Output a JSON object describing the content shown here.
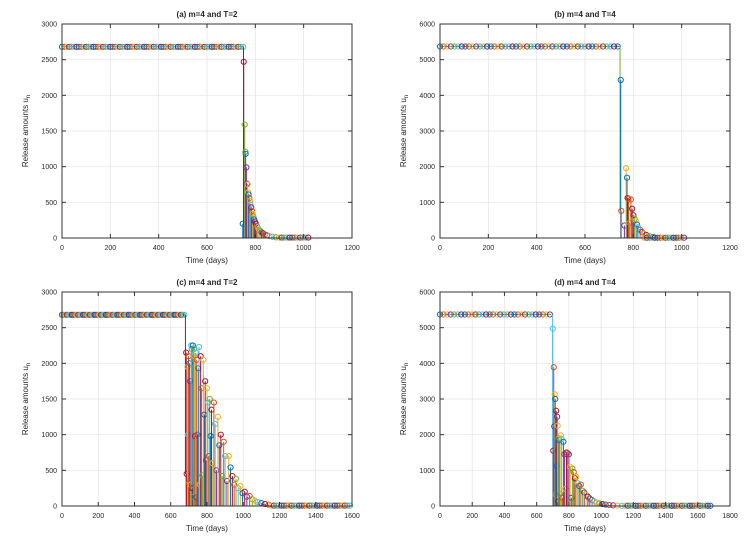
{
  "figure": {
    "background": "#ffffff",
    "palette": [
      "#0072BD",
      "#D95319",
      "#EDB120",
      "#7E2F8E",
      "#77AC30",
      "#4DBEEE",
      "#A2142F"
    ],
    "axis_color": "#333333",
    "grid_color": "#e3e3e3",
    "tick_label_color": "#262626"
  },
  "chart_data": [
    {
      "type": "scatter",
      "panel": "a",
      "title": "(a) m=4 and T=2",
      "xlabel": "Time (days)",
      "ylabel": "Release amounts u",
      "ylabel_sub": "n",
      "xlim": [
        0,
        1200
      ],
      "xticks": [
        0,
        200,
        400,
        600,
        800,
        1000,
        1200
      ],
      "ylim": [
        0,
        3000
      ],
      "yticks": [
        0,
        500,
        1000,
        1500,
        2000,
        2500,
        3000
      ],
      "grid": true,
      "legend": "none",
      "plateau": {
        "value": 2680,
        "from": 0,
        "to": 750,
        "step": 10
      },
      "drop": {
        "x": 751,
        "to_y": 180,
        "color_index": 6
      },
      "spikes": [
        [
          748,
          200,
          0
        ],
        [
          752,
          2470,
          6
        ],
        [
          756,
          1590,
          4
        ],
        [
          759,
          1210,
          4
        ],
        [
          760,
          1180,
          0
        ],
        [
          763,
          990,
          3
        ],
        [
          766,
          760,
          3
        ],
        [
          768,
          750,
          2
        ],
        [
          770,
          640,
          2
        ],
        [
          772,
          610,
          0
        ],
        [
          775,
          560,
          1
        ],
        [
          778,
          520,
          2
        ],
        [
          780,
          470,
          5
        ],
        [
          783,
          430,
          6
        ],
        [
          786,
          380,
          1
        ],
        [
          789,
          340,
          2
        ],
        [
          792,
          300,
          4
        ],
        [
          795,
          260,
          0
        ],
        [
          798,
          230,
          3
        ],
        [
          802,
          200,
          6
        ],
        [
          806,
          170,
          1
        ],
        [
          810,
          150,
          5
        ],
        [
          815,
          120,
          2
        ],
        [
          820,
          100,
          4
        ],
        [
          826,
          80,
          0
        ],
        [
          832,
          65,
          6
        ],
        [
          840,
          50,
          1
        ],
        [
          848,
          38,
          3
        ],
        [
          858,
          28,
          2
        ],
        [
          870,
          18,
          5
        ],
        [
          885,
          10,
          4
        ]
      ],
      "tail": {
        "from": 898,
        "to": 1020,
        "step": 11,
        "value": 6
      }
    },
    {
      "type": "scatter",
      "panel": "b",
      "title": "(b) m=4 and T=4",
      "xlabel": "Time (days)",
      "ylabel": "Release amounts u",
      "ylabel_sub": "n",
      "xlim": [
        0,
        1200
      ],
      "xticks": [
        0,
        200,
        400,
        600,
        800,
        1000,
        1200
      ],
      "ylim": [
        0,
        6000
      ],
      "yticks": [
        0,
        1000,
        2000,
        3000,
        4000,
        5000,
        6000
      ],
      "grid": true,
      "legend": "none",
      "plateau": {
        "value": 5370,
        "from": 0,
        "to": 742,
        "step": 15
      },
      "drop": {
        "x": 745,
        "to_y": 760,
        "color_index": 4
      },
      "spikes": [
        [
          748,
          4430,
          0
        ],
        [
          750,
          760,
          1
        ],
        [
          763,
          350,
          3
        ],
        [
          770,
          1960,
          2
        ],
        [
          774,
          1690,
          0
        ],
        [
          776,
          1120,
          6
        ],
        [
          780,
          1100,
          1
        ],
        [
          784,
          430,
          4
        ],
        [
          790,
          1080,
          1
        ],
        [
          795,
          820,
          6
        ],
        [
          800,
          640,
          6
        ],
        [
          805,
          540,
          4
        ],
        [
          810,
          490,
          2
        ],
        [
          815,
          380,
          0
        ],
        [
          820,
          300,
          5
        ],
        [
          828,
          230,
          1
        ],
        [
          836,
          170,
          3
        ],
        [
          845,
          120,
          2
        ],
        [
          855,
          80,
          6
        ],
        [
          868,
          50,
          4
        ],
        [
          882,
          30,
          0
        ]
      ],
      "tail": {
        "from": 845,
        "to": 1020,
        "step": 11,
        "value": 8
      }
    },
    {
      "type": "scatter",
      "panel": "c",
      "title": "(c) m=4 and T=2",
      "xlabel": "Time (days)",
      "ylabel": "Release amounts u",
      "ylabel_sub": "n",
      "xlim": [
        0,
        1600
      ],
      "xticks": [
        0,
        200,
        400,
        600,
        800,
        1000,
        1200,
        1400,
        1600
      ],
      "ylim": [
        0,
        3000
      ],
      "yticks": [
        0,
        500,
        1000,
        1500,
        2000,
        2500,
        3000
      ],
      "grid": true,
      "legend": "none",
      "plateau": {
        "value": 2680,
        "from": 0,
        "to": 680,
        "step": 9
      },
      "drop": {
        "x": 681,
        "to_y": 450,
        "color_index": 6
      },
      "spikes": [
        [
          685,
          2150,
          6
        ],
        [
          688,
          450,
          6
        ],
        [
          692,
          1950,
          2
        ],
        [
          695,
          1000,
          5
        ],
        [
          698,
          2100,
          1
        ],
        [
          701,
          320,
          1
        ],
        [
          704,
          2000,
          0
        ],
        [
          707,
          1750,
          3
        ],
        [
          710,
          300,
          2
        ],
        [
          713,
          2250,
          5
        ],
        [
          716,
          2200,
          4
        ],
        [
          719,
          250,
          6
        ],
        [
          722,
          2250,
          0
        ],
        [
          725,
          130,
          4
        ],
        [
          728,
          2200,
          4
        ],
        [
          731,
          2100,
          2
        ],
        [
          734,
          980,
          6
        ],
        [
          737,
          2150,
          5
        ],
        [
          740,
          120,
          0
        ],
        [
          743,
          2050,
          1
        ],
        [
          748,
          1000,
          3
        ],
        [
          752,
          1930,
          0
        ],
        [
          756,
          2230,
          5
        ],
        [
          760,
          300,
          2
        ],
        [
          765,
          2100,
          6
        ],
        [
          770,
          1650,
          1
        ],
        [
          775,
          430,
          4
        ],
        [
          780,
          2050,
          2
        ],
        [
          785,
          1280,
          0
        ],
        [
          790,
          1750,
          6
        ],
        [
          795,
          640,
          3
        ],
        [
          800,
          1650,
          2
        ],
        [
          805,
          1450,
          5
        ],
        [
          810,
          700,
          1
        ],
        [
          815,
          1500,
          4
        ],
        [
          820,
          980,
          0
        ],
        [
          825,
          1350,
          6
        ],
        [
          830,
          600,
          2
        ],
        [
          838,
          1450,
          1
        ],
        [
          845,
          1150,
          5
        ],
        [
          852,
          500,
          3
        ],
        [
          860,
          1250,
          2
        ],
        [
          868,
          850,
          0
        ],
        [
          876,
          1000,
          6
        ],
        [
          884,
          420,
          4
        ],
        [
          892,
          900,
          1
        ],
        [
          900,
          700,
          5
        ],
        [
          910,
          350,
          3
        ],
        [
          920,
          700,
          2
        ],
        [
          930,
          540,
          0
        ],
        [
          940,
          420,
          6
        ],
        [
          950,
          300,
          1
        ],
        [
          960,
          380,
          4
        ],
        [
          972,
          250,
          5
        ],
        [
          984,
          280,
          2
        ],
        [
          996,
          180,
          0
        ],
        [
          1008,
          200,
          6
        ],
        [
          1020,
          130,
          3
        ],
        [
          1035,
          140,
          1
        ],
        [
          1050,
          95,
          4
        ],
        [
          1065,
          75,
          2
        ],
        [
          1080,
          55,
          5
        ],
        [
          1100,
          40,
          0
        ],
        [
          1120,
          28,
          6
        ],
        [
          1140,
          18,
          1
        ]
      ],
      "tail": {
        "from": 1155,
        "to": 1600,
        "step": 14,
        "value": 5
      }
    },
    {
      "type": "scatter",
      "panel": "d",
      "title": "(d) m=4 and T=4",
      "xlabel": "Time (days)",
      "ylabel": "Release amounts u",
      "ylabel_sub": "n",
      "xlim": [
        0,
        1800
      ],
      "xticks": [
        0,
        200,
        400,
        600,
        800,
        1000,
        1200,
        1400,
        1600,
        1800
      ],
      "ylim": [
        0,
        6000
      ],
      "yticks": [
        0,
        1000,
        2000,
        3000,
        4000,
        5000,
        6000
      ],
      "grid": true,
      "legend": "none",
      "plateau": {
        "value": 5370,
        "from": 0,
        "to": 690,
        "step": 22
      },
      "drop": {
        "x": 699,
        "to_y": 1550,
        "color_index": 5
      },
      "spikes": [
        [
          700,
          4970,
          5
        ],
        [
          703,
          1550,
          6
        ],
        [
          706,
          3890,
          1
        ],
        [
          709,
          2230,
          3
        ],
        [
          712,
          3130,
          2
        ],
        [
          715,
          3000,
          0
        ],
        [
          718,
          320,
          4
        ],
        [
          721,
          2670,
          6
        ],
        [
          724,
          1120,
          0
        ],
        [
          727,
          2500,
          3
        ],
        [
          730,
          2250,
          2
        ],
        [
          733,
          120,
          6
        ],
        [
          736,
          1900,
          4
        ],
        [
          740,
          1850,
          0
        ],
        [
          745,
          330,
          4
        ],
        [
          750,
          1980,
          2
        ],
        [
          755,
          1880,
          5
        ],
        [
          760,
          230,
          1
        ],
        [
          766,
          1800,
          0
        ],
        [
          772,
          1450,
          3
        ],
        [
          778,
          480,
          2
        ],
        [
          785,
          1500,
          6
        ],
        [
          792,
          1480,
          1
        ],
        [
          800,
          1450,
          3
        ],
        [
          808,
          1100,
          2
        ],
        [
          815,
          230,
          0
        ],
        [
          822,
          1050,
          4
        ],
        [
          830,
          950,
          1
        ],
        [
          838,
          780,
          6
        ],
        [
          846,
          820,
          2
        ],
        [
          855,
          640,
          5
        ],
        [
          864,
          560,
          0
        ],
        [
          874,
          600,
          1
        ],
        [
          884,
          430,
          4
        ],
        [
          895,
          380,
          3
        ],
        [
          906,
          320,
          2
        ],
        [
          918,
          260,
          6
        ],
        [
          930,
          210,
          0
        ],
        [
          944,
          170,
          1
        ],
        [
          958,
          130,
          5
        ],
        [
          974,
          100,
          2
        ],
        [
          990,
          75,
          4
        ],
        [
          1008,
          55,
          6
        ],
        [
          1028,
          40,
          0
        ],
        [
          1050,
          28,
          1
        ],
        [
          1075,
          18,
          3
        ],
        [
          1100,
          12,
          2
        ],
        [
          1130,
          8,
          5
        ]
      ],
      "tail": {
        "from": 1150,
        "to": 1680,
        "step": 16,
        "value": 8
      }
    }
  ]
}
